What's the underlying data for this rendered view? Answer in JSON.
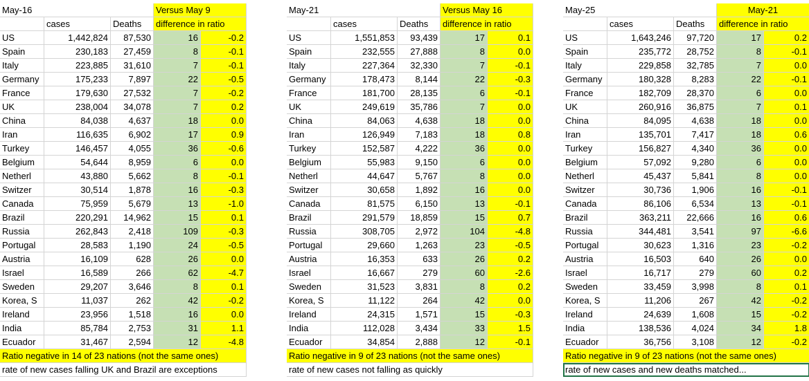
{
  "blocks": [
    {
      "date": "May-16",
      "versus": "Versus May 9",
      "h_cases": "cases",
      "h_deaths": "Deaths",
      "h_diff": "difference in ratio",
      "rows": [
        [
          "US",
          "1,442,824",
          "87,530",
          "16",
          "-0.2"
        ],
        [
          "Spain",
          "230,183",
          "27,459",
          "8",
          "-0.1"
        ],
        [
          "Italy",
          "223,885",
          "31,610",
          "7",
          "-0.1"
        ],
        [
          "Germany",
          "175,233",
          "7,897",
          "22",
          "-0.5"
        ],
        [
          "France",
          "179,630",
          "27,532",
          "7",
          "-0.2"
        ],
        [
          "UK",
          "238,004",
          "34,078",
          "7",
          "0.2"
        ],
        [
          "China",
          "84,038",
          "4,637",
          "18",
          "0.0"
        ],
        [
          "Iran",
          "116,635",
          "6,902",
          "17",
          "0.9"
        ],
        [
          "Turkey",
          "146,457",
          "4,055",
          "36",
          "-0.6"
        ],
        [
          "Belgium",
          "54,644",
          "8,959",
          "6",
          "0.0"
        ],
        [
          "Netherl",
          "43,880",
          "5,662",
          "8",
          "-0.1"
        ],
        [
          "Switzer",
          "30,514",
          "1,878",
          "16",
          "-0.3"
        ],
        [
          "Canada",
          "75,959",
          "5,679",
          "13",
          "-1.0"
        ],
        [
          "Brazil",
          "220,291",
          "14,962",
          "15",
          "0.1"
        ],
        [
          "Russia",
          "262,843",
          "2,418",
          "109",
          "-0.3"
        ],
        [
          "Portugal",
          "28,583",
          "1,190",
          "24",
          "-0.5"
        ],
        [
          "Austria",
          "16,109",
          "628",
          "26",
          "0.0"
        ],
        [
          "Israel",
          "16,589",
          "266",
          "62",
          "-4.7"
        ],
        [
          "Sweden",
          "29,207",
          "3,646",
          "8",
          "0.1"
        ],
        [
          "Korea, S",
          "11,037",
          "262",
          "42",
          "-0.2"
        ],
        [
          "Ireland",
          "23,956",
          "1,518",
          "16",
          "0.0"
        ],
        [
          "India",
          "85,784",
          "2,753",
          "31",
          "1.1"
        ],
        [
          "Ecuador",
          "31,467",
          "2,594",
          "12",
          "-4.8"
        ]
      ],
      "note1": "Ratio  negative in 14 of 23 nations (not the same ones)",
      "note2": "rate of new cases falling UK and Brazil are exceptions"
    },
    {
      "date": "May-21",
      "versus": "Versus May 16",
      "h_cases": "cases",
      "h_deaths": "Deaths",
      "h_diff": "difference in ratio",
      "rows": [
        [
          "US",
          "1,551,853",
          "93,439",
          "17",
          "0.1"
        ],
        [
          "Spain",
          "232,555",
          "27,888",
          "8",
          "0.0"
        ],
        [
          "Italy",
          "227,364",
          "32,330",
          "7",
          "-0.1"
        ],
        [
          "Germany",
          "178,473",
          "8,144",
          "22",
          "-0.3"
        ],
        [
          "France",
          "181,700",
          "28,135",
          "6",
          "-0.1"
        ],
        [
          "UK",
          "249,619",
          "35,786",
          "7",
          "0.0"
        ],
        [
          "China",
          "84,063",
          "4,638",
          "18",
          "0.0"
        ],
        [
          "Iran",
          "126,949",
          "7,183",
          "18",
          "0.8"
        ],
        [
          "Turkey",
          "152,587",
          "4,222",
          "36",
          "0.0"
        ],
        [
          "Belgium",
          "55,983",
          "9,150",
          "6",
          "0.0"
        ],
        [
          "Netherl",
          "44,647",
          "5,767",
          "8",
          "0.0"
        ],
        [
          "Switzer",
          "30,658",
          "1,892",
          "16",
          "0.0"
        ],
        [
          "Canada",
          "81,575",
          "6,150",
          "13",
          "-0.1"
        ],
        [
          "Brazil",
          "291,579",
          "18,859",
          "15",
          "0.7"
        ],
        [
          "Russia",
          "308,705",
          "2,972",
          "104",
          "-4.8"
        ],
        [
          "Portugal",
          "29,660",
          "1,263",
          "23",
          "-0.5"
        ],
        [
          "Austria",
          "16,353",
          "633",
          "26",
          "0.2"
        ],
        [
          "Israel",
          "16,667",
          "279",
          "60",
          "-2.6"
        ],
        [
          "Sweden",
          "31,523",
          "3,831",
          "8",
          "0.2"
        ],
        [
          "Korea, S",
          "11,122",
          "264",
          "42",
          "0.0"
        ],
        [
          "Ireland",
          "24,315",
          "1,571",
          "15",
          "-0.3"
        ],
        [
          "India",
          "112,028",
          "3,434",
          "33",
          "1.5"
        ],
        [
          "Ecuador",
          "34,854",
          "2,888",
          "12",
          "-0.1"
        ]
      ],
      "note1": "Ratio  negative in 9 of 23 nations (not the same ones)",
      "note2": "rate of new cases not falling as quickly"
    },
    {
      "date": "May-25",
      "versus": "May-21",
      "h_cases": "cases",
      "h_deaths": "Deaths",
      "h_diff": "difference in ratio",
      "rows": [
        [
          "US",
          "1,643,246",
          "97,720",
          "17",
          "0.2"
        ],
        [
          "Spain",
          "235,772",
          "28,752",
          "8",
          "-0.1"
        ],
        [
          "Italy",
          "229,858",
          "32,785",
          "7",
          "0.0"
        ],
        [
          "Germany",
          "180,328",
          "8,283",
          "22",
          "-0.1"
        ],
        [
          "France",
          "182,709",
          "28,370",
          "6",
          "0.0"
        ],
        [
          "UK",
          "260,916",
          "36,875",
          "7",
          "0.1"
        ],
        [
          "China",
          "84,095",
          "4,638",
          "18",
          "0.0"
        ],
        [
          "Iran",
          "135,701",
          "7,417",
          "18",
          "0.6"
        ],
        [
          "Turkey",
          "156,827",
          "4,340",
          "36",
          "0.0"
        ],
        [
          "Belgium",
          "57,092",
          "9,280",
          "6",
          "0.0"
        ],
        [
          "Netherl",
          "45,437",
          "5,841",
          "8",
          "0.0"
        ],
        [
          "Switzer",
          "30,736",
          "1,906",
          "16",
          "-0.1"
        ],
        [
          "Canada",
          "86,106",
          "6,534",
          "13",
          "-0.1"
        ],
        [
          "Brazil",
          "363,211",
          "22,666",
          "16",
          "0.6"
        ],
        [
          "Russia",
          "344,481",
          "3,541",
          "97",
          "-6.6"
        ],
        [
          "Portugal",
          "30,623",
          "1,316",
          "23",
          "-0.2"
        ],
        [
          "Austria",
          "16,503",
          "640",
          "26",
          "0.0"
        ],
        [
          "Israel",
          "16,717",
          "279",
          "60",
          "0.2"
        ],
        [
          "Sweden",
          "33,459",
          "3,998",
          "8",
          "0.1"
        ],
        [
          "Korea, S",
          "11,206",
          "267",
          "42",
          "-0.2"
        ],
        [
          "Ireland",
          "24,639",
          "1,608",
          "15",
          "-0.2"
        ],
        [
          "India",
          "138,536",
          "4,024",
          "34",
          "1.8"
        ],
        [
          "Ecuador",
          "36,756",
          "3,108",
          "12",
          "-0.2"
        ]
      ],
      "note1": "Ratio  negative in 9 of 23 nations (not the same ones)",
      "note2": "rate of new cases and new deaths matched..."
    }
  ],
  "colors": {
    "green": "#c6e0b4",
    "yellow": "#ffff00",
    "grid": "#d4d4d4"
  }
}
